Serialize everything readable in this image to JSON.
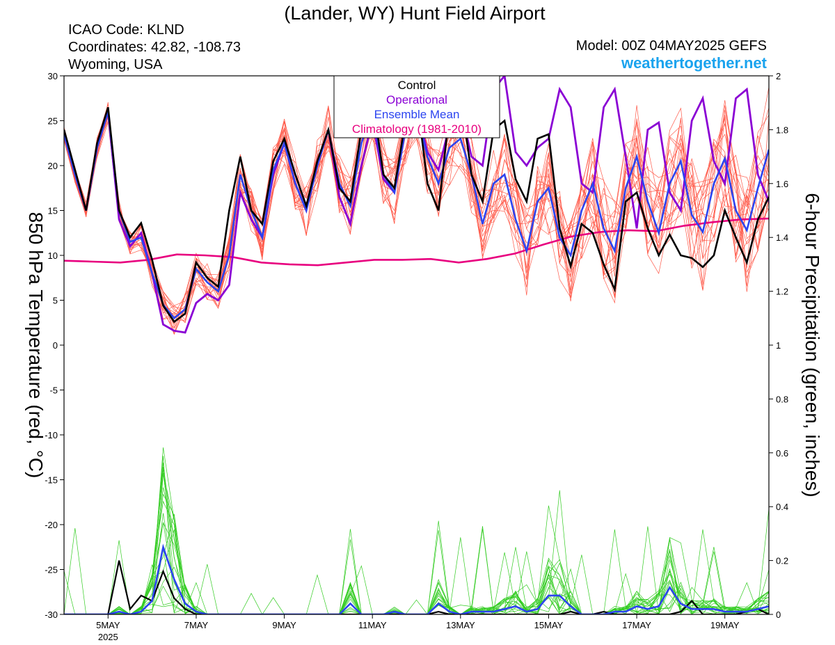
{
  "header": {
    "title": "(Lander, WY) Hunt Field Airport",
    "icao": "ICAO Code: KLND",
    "coords": "Coordinates: 42.82, -108.73",
    "region": "Wyoming, USA",
    "model": "Model: 00Z 04MAY2025 GEFS",
    "site": "weathertogether.net"
  },
  "colors": {
    "control": "#000000",
    "operational": "#8a00d4",
    "mean": "#2b44f0",
    "climatology": "#e8007f",
    "members_temp": "#ff5a4a",
    "members_precip": "#33cc22",
    "site": "#1aa3ee"
  },
  "chart_data": {
    "type": "line",
    "ylabel": "850 hPa Temperature (red, °C)",
    "y2label": "6-hour Precipitation (green, inches)",
    "ylim": [
      -30,
      30
    ],
    "y2lim": [
      0,
      2
    ],
    "yticks": [
      30,
      25,
      20,
      15,
      10,
      5,
      0,
      -5,
      -10,
      -15,
      -20,
      -25,
      -30
    ],
    "y2ticks": [
      "2",
      "1.8",
      "1.6",
      "1.4",
      "1.2",
      "1",
      "0.8",
      "0.6",
      "0.4",
      "0.2",
      "0"
    ],
    "x_start_day": 4.0,
    "x_end_day": 20.0,
    "x_step_days": 0.25,
    "xticks": [
      {
        "day": 5,
        "label": "5MAY",
        "sub": "2025"
      },
      {
        "day": 7,
        "label": "7MAY"
      },
      {
        "day": 9,
        "label": "9MAY"
      },
      {
        "day": 11,
        "label": "11MAY"
      },
      {
        "day": 13,
        "label": "13MAY"
      },
      {
        "day": 15,
        "label": "15MAY"
      },
      {
        "day": 17,
        "label": "17MAY"
      },
      {
        "day": 19,
        "label": "19MAY"
      }
    ],
    "legend": {
      "position": "top-center",
      "entries": [
        {
          "label": "Control",
          "color": "#000000"
        },
        {
          "label": "Operational",
          "color": "#8a00d4"
        },
        {
          "label": "Ensemble Mean",
          "color": "#2b44f0"
        },
        {
          "label": "Climatology (1981-2010)",
          "color": "#e8007f"
        }
      ]
    },
    "temperature": {
      "control": [
        24.0,
        19.5,
        15.0,
        22.5,
        26.5,
        15.0,
        12.0,
        13.6,
        9.5,
        4.4,
        2.6,
        3.5,
        9.2,
        7.5,
        6.5,
        15.0,
        21.0,
        15.0,
        13.5,
        20.5,
        23.0,
        19.0,
        15.5,
        20.5,
        24.0,
        17.5,
        16.0,
        24.0,
        27.5,
        19.0,
        17.5,
        25.0,
        28.0,
        18.0,
        15.0,
        26.0,
        28.0,
        19.0,
        16.0,
        24.0,
        25.0,
        18.5,
        16.0,
        23.0,
        23.5,
        13.0,
        8.8,
        13.5,
        12.5,
        9.0,
        6.2,
        16.0,
        17.0,
        13.0,
        10.0,
        12.3,
        10.0,
        9.7,
        8.7,
        10.0,
        15.0,
        12.0,
        9.2,
        14.0,
        16.5
      ],
      "operational": [
        23.5,
        19.0,
        15.0,
        22.0,
        26.0,
        14.0,
        11.0,
        12.5,
        8.0,
        2.3,
        1.6,
        1.4,
        4.7,
        5.7,
        5.0,
        6.7,
        17.0,
        14.0,
        12.0,
        19.0,
        22.5,
        18.0,
        15.0,
        20.0,
        24.0,
        16.5,
        13.5,
        20.0,
        25.0,
        18.5,
        17.0,
        24.0,
        26.5,
        21.5,
        19.5,
        24.5,
        26.5,
        21.0,
        20.0,
        28.5,
        30.0,
        21.5,
        20.0,
        22.0,
        23.0,
        28.5,
        26.5,
        18.0,
        17.0,
        26.5,
        28.5,
        21.0,
        13.0,
        24.0,
        24.8,
        17.0,
        15.0,
        25.0,
        27.5,
        20.5,
        18.0,
        27.5,
        28.5,
        19.0,
        16.0,
        25.0,
        30.0
      ],
      "mean": [
        23.5,
        19.0,
        15.0,
        22.0,
        26.0,
        15.0,
        11.5,
        12.0,
        8.0,
        4.5,
        3.0,
        4.0,
        8.5,
        7.0,
        6.0,
        10.0,
        19.0,
        15.0,
        12.0,
        19.5,
        22.5,
        18.0,
        15.0,
        20.0,
        24.0,
        18.0,
        15.5,
        22.5,
        26.0,
        19.0,
        17.0,
        24.0,
        26.0,
        21.0,
        18.0,
        22.0,
        23.0,
        19.0,
        13.5,
        18.0,
        19.0,
        14.0,
        10.5,
        16.0,
        17.5,
        12.0,
        10.0,
        15.0,
        18.0,
        13.0,
        10.5,
        17.5,
        21.0,
        16.0,
        12.5,
        18.0,
        20.5,
        14.5,
        12.6,
        18.0,
        20.8,
        15.0,
        12.8,
        17.5,
        21.8
      ],
      "climatology": [
        9.4,
        9.3,
        9.2,
        9.5,
        10.1,
        10.0,
        9.8,
        9.2,
        9.0,
        8.9,
        9.2,
        9.5,
        9.5,
        9.6,
        9.2,
        9.6,
        10.2,
        11.2,
        12.1,
        12.6,
        12.8,
        12.7,
        13.3,
        13.7,
        14.0,
        14.1
      ]
    },
    "precipitation": {
      "control": [
        0,
        0,
        0,
        0,
        0,
        0.2,
        0.02,
        0.07,
        0.05,
        0.16,
        0.06,
        0.02,
        0,
        0,
        0,
        0,
        0,
        0,
        0,
        0,
        0,
        0,
        0,
        0,
        0,
        0,
        0,
        0,
        0,
        0,
        0,
        0,
        0,
        0,
        0.01,
        0,
        0,
        0,
        0,
        0,
        0,
        0,
        0,
        0,
        0,
        0,
        0.01,
        0,
        0,
        0.01,
        0,
        0,
        0,
        0,
        0,
        0,
        0.01,
        0.05,
        0,
        0,
        0,
        0,
        0.01,
        0.02,
        0
      ],
      "mean": [
        0,
        0,
        0,
        0,
        0,
        0.01,
        0,
        0.01,
        0.05,
        0.25,
        0.13,
        0.04,
        0.01,
        0,
        0,
        0,
        0,
        0,
        0,
        0,
        0,
        0,
        0,
        0,
        0,
        0,
        0.04,
        0,
        0,
        0,
        0.01,
        0,
        0,
        0,
        0.04,
        0.01,
        0,
        0.01,
        0.01,
        0.01,
        0.02,
        0.03,
        0.01,
        0.02,
        0.07,
        0.07,
        0.03,
        0,
        0,
        0,
        0.01,
        0.01,
        0.03,
        0.02,
        0.03,
        0.1,
        0.04,
        0.02,
        0.02,
        0.02,
        0.01,
        0.01,
        0.01,
        0.02,
        0.03
      ]
    }
  }
}
